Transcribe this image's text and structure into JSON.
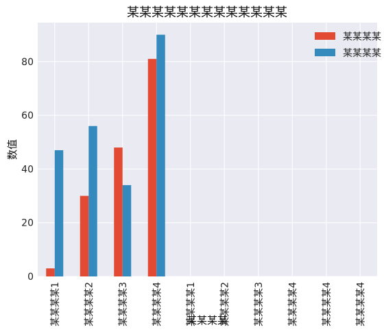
{
  "chart_data": {
    "type": "bar",
    "title": "某某某某某某某某某某某某某",
    "xlabel": "某某某某",
    "ylabel": "数值",
    "categories": [
      "某某某某1",
      "某某某某2",
      "某某某某3",
      "某某某某4",
      "某某某某1",
      "某某某某2",
      "某某某某3",
      "某某某某4",
      "某某某某4",
      "某某某某4"
    ],
    "series": [
      {
        "name": "某某某某",
        "color": "#E24A33",
        "values": [
          3,
          30,
          48,
          81,
          null,
          null,
          null,
          null,
          null,
          null
        ]
      },
      {
        "name": "某某某某",
        "color": "#348ABD",
        "values": [
          47,
          56,
          34,
          90,
          null,
          null,
          null,
          null,
          null,
          null
        ]
      }
    ],
    "yticks": [
      0,
      20,
      40,
      60,
      80
    ],
    "ylim": [
      0,
      94.5
    ],
    "grid": true,
    "legend": "top-right",
    "background": "#EAEAF2",
    "grid_color": "#FFFFFF"
  }
}
